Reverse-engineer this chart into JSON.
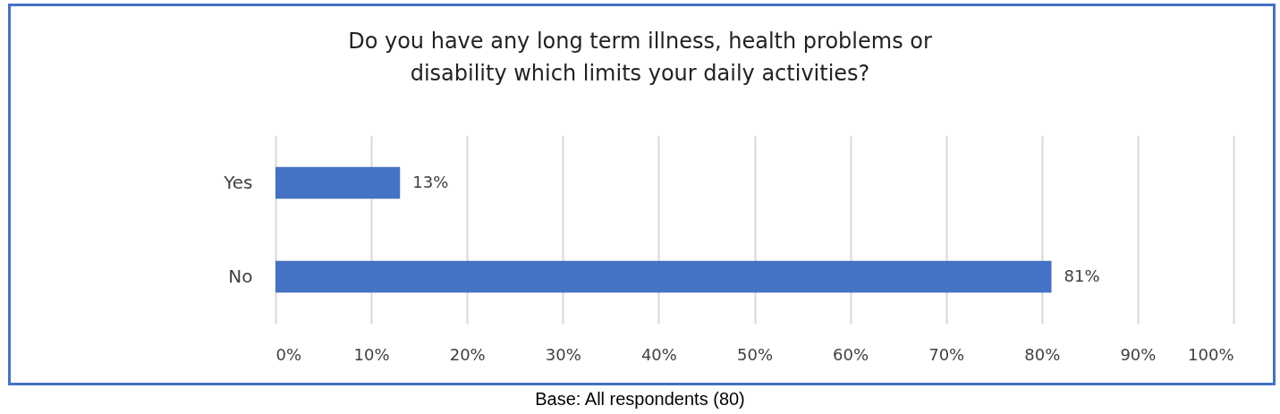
{
  "chart_data": {
    "type": "bar",
    "orientation": "horizontal",
    "title": "Do you have any long term illness, health problems or disability which limits your daily activities?",
    "categories": [
      "Yes",
      "No"
    ],
    "values": [
      13,
      81
    ],
    "value_labels": [
      "13%",
      "81%"
    ],
    "color": "#4472c4",
    "xlim": [
      0,
      100
    ],
    "xticks": [
      {
        "value": 0,
        "label": "0%"
      },
      {
        "value": 10,
        "label": "10%"
      },
      {
        "value": 20,
        "label": "20%"
      },
      {
        "value": 30,
        "label": "30%"
      },
      {
        "value": 40,
        "label": "40%"
      },
      {
        "value": 50,
        "label": "50%"
      },
      {
        "value": 60,
        "label": "60%"
      },
      {
        "value": 70,
        "label": "70%"
      },
      {
        "value": 80,
        "label": "80%"
      },
      {
        "value": 90,
        "label": "90%"
      },
      {
        "value": 100,
        "label": "100%"
      }
    ],
    "grid": "x",
    "annotations": [
      "Base: All respondents (80)"
    ]
  }
}
